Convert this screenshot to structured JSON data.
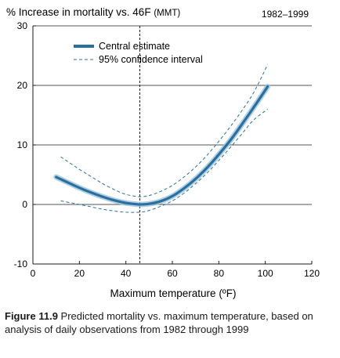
{
  "chart_data": {
    "type": "line",
    "title": "% Increase in mortality vs. 46F",
    "title_suffix": "(MMT)",
    "period": "1982–1999",
    "xlabel": "Maximum temperature",
    "xlabel_unit": "(ºF)",
    "xlim": [
      0,
      120
    ],
    "ylim": [
      -10,
      30
    ],
    "xticks": [
      0,
      20,
      40,
      60,
      80,
      100,
      120
    ],
    "yticks": [
      -10,
      0,
      10,
      20,
      30
    ],
    "grid": "horizontal",
    "reference_line_x": 46,
    "legend": {
      "placement": "top-left",
      "entries": [
        "Central estimate",
        "95% confidence interval"
      ]
    },
    "series": [
      {
        "name": "Central estimate",
        "style": "solid-thick",
        "x": [
          10,
          15,
          20,
          25,
          30,
          35,
          40,
          45,
          46,
          50,
          55,
          60,
          65,
          70,
          75,
          80,
          85,
          90,
          95,
          101
        ],
        "y": [
          4.6,
          3.7,
          2.8,
          2.0,
          1.3,
          0.7,
          0.25,
          0.02,
          0.0,
          0.1,
          0.55,
          1.4,
          2.7,
          4.3,
          6.2,
          8.4,
          10.8,
          13.5,
          16.3,
          19.8
        ]
      },
      {
        "name": "95% confidence interval",
        "bound": "upper",
        "style": "dashed",
        "x": [
          12,
          20,
          25,
          30,
          35,
          40,
          46,
          50,
          55,
          60,
          65,
          70,
          75,
          80,
          85,
          90,
          95,
          101
        ],
        "y": [
          8.0,
          5.9,
          4.7,
          3.5,
          2.5,
          1.7,
          1.3,
          1.5,
          2.2,
          3.2,
          4.6,
          6.3,
          8.3,
          10.6,
          13.1,
          15.8,
          18.8,
          23.5
        ]
      },
      {
        "name": "95% confidence interval",
        "bound": "lower",
        "style": "dashed",
        "x": [
          12,
          20,
          25,
          30,
          35,
          40,
          46,
          50,
          55,
          60,
          65,
          70,
          75,
          80,
          85,
          90,
          95,
          101
        ],
        "y": [
          0.6,
          0.0,
          -0.4,
          -0.8,
          -1.1,
          -1.3,
          -1.3,
          -1.0,
          -0.3,
          0.6,
          1.9,
          3.5,
          5.3,
          7.4,
          9.6,
          11.9,
          14.2,
          16.0
        ]
      }
    ]
  },
  "caption": {
    "label": "Figure 11.9",
    "text": "Predicted mortality vs. maximum temperature, based on analysis of daily observations from 1982 through 1999"
  },
  "colors": {
    "line": "#2a6f9e",
    "band": "#9ec4dc",
    "axis": "#1a1a1a",
    "grid": "#1a1a1a"
  }
}
